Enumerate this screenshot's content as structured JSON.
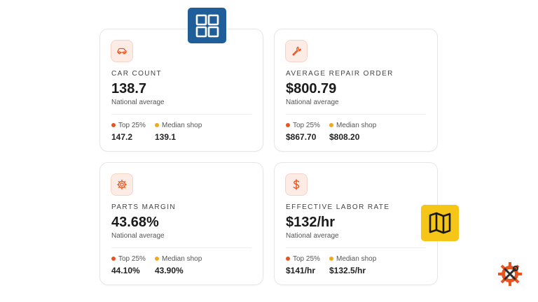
{
  "colors": {
    "accent": "#e8541f",
    "top_dot": "#e8541f",
    "median_dot": "#f0a91c",
    "icon_bg": "#fdece6",
    "grid_badge": "#1f5e99",
    "map_badge": "#f5c518"
  },
  "cards": [
    {
      "icon": "car-icon",
      "title": "CAR COUNT",
      "value": "138.7",
      "subtitle": "National average",
      "top_label": "Top 25%",
      "top_value": "147.2",
      "median_label": "Median shop",
      "median_value": "139.1"
    },
    {
      "icon": "wrench-icon",
      "title": "AVERAGE REPAIR ORDER",
      "value": "$800.79",
      "subtitle": "National average",
      "top_label": "Top 25%",
      "top_value": "$867.70",
      "median_label": "Median shop",
      "median_value": "$808.20"
    },
    {
      "icon": "gear-icon",
      "title": "PARTS MARGIN",
      "value": "43.68%",
      "subtitle": "National average",
      "top_label": "Top 25%",
      "top_value": "44.10%",
      "median_label": "Median shop",
      "median_value": "43.90%"
    },
    {
      "icon": "dollar-icon",
      "title": "EFFECTIVE LABOR RATE",
      "value": "$132/hr",
      "subtitle": "National average",
      "top_label": "Top 25%",
      "top_value": "$141/hr",
      "median_label": "Median shop",
      "median_value": "$132.5/hr"
    }
  ],
  "badges": {
    "grid": "dashboard-grid-icon",
    "map": "map-icon",
    "logo": "tools-gear-logo"
  }
}
